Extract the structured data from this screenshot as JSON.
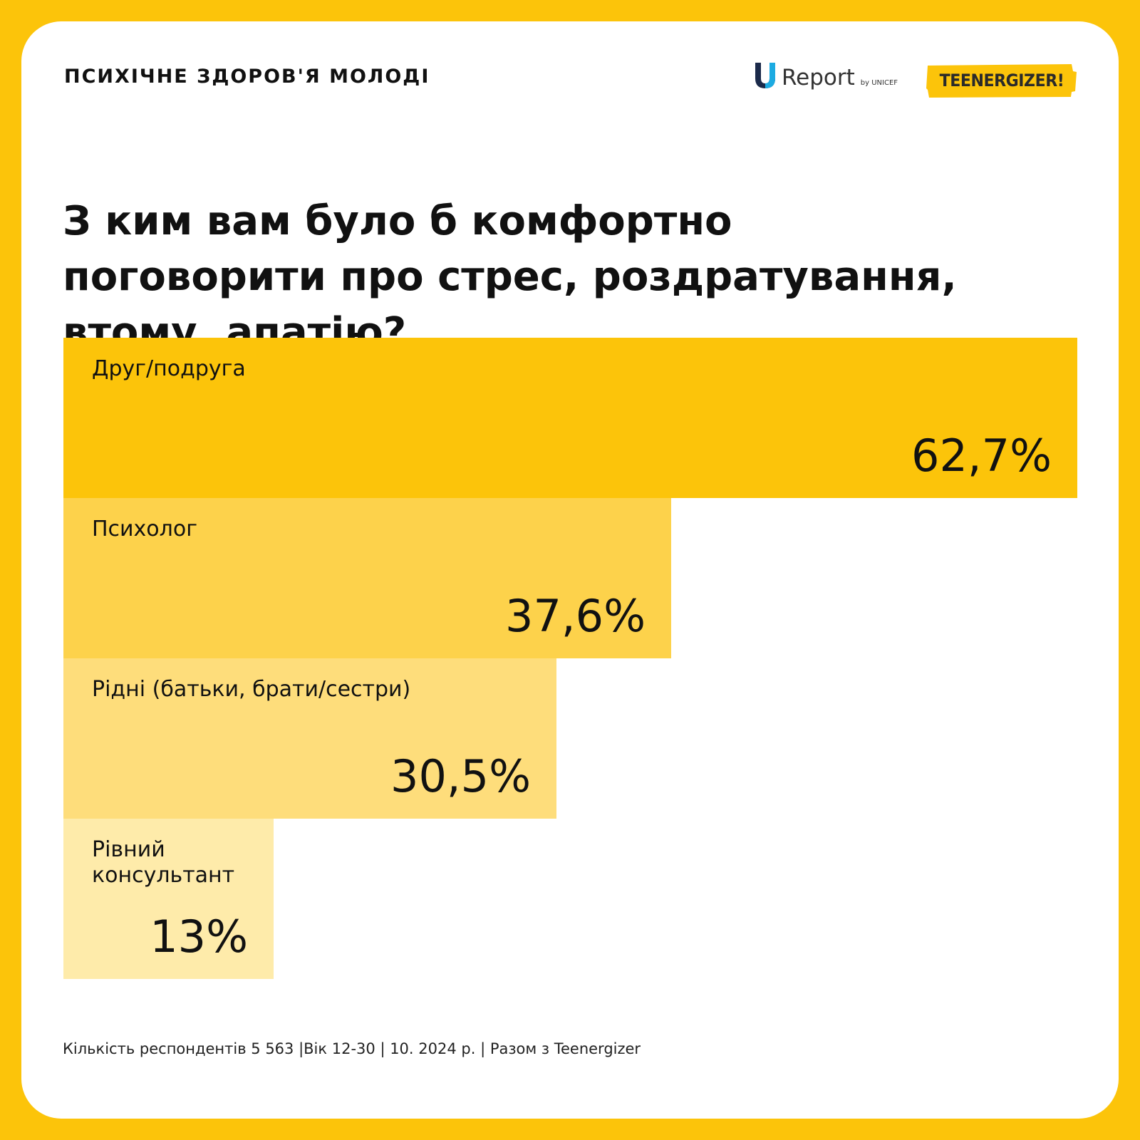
{
  "header": {
    "topic": "ПСИХІЧНЕ ЗДОРОВ'Я МОЛОДІ",
    "logo_ureport": {
      "word": "Report",
      "by": "by UNICEF",
      "mark": "u-letter-icon"
    },
    "logo_teenergizer": "TEENERGIZER!"
  },
  "question": "З ким вам було б комфортно поговорити про стрес, роздратування, втому, апатію?",
  "chart_data": {
    "type": "bar",
    "orientation": "horizontal",
    "title": "З ким вам було б комфортно поговорити про стрес, роздратування, втому, апатію?",
    "categories": [
      "Друг/подруга",
      "Психолог",
      "Рідні (батьки, брати/сестри)",
      "Рівний консультант"
    ],
    "values": [
      62.7,
      37.6,
      30.5,
      13
    ],
    "value_labels": [
      "62,7%",
      "37,6%",
      "30,5%",
      "13%"
    ],
    "unit": "%",
    "xlim": [
      0,
      62.7
    ],
    "colors": [
      "#FCC40A",
      "#FDD24B",
      "#FEDD7B",
      "#FEEBAA"
    ],
    "grid": false,
    "legend": "none"
  },
  "footer": "Кількість респондентів 5 563 |Вік 12-30 | 10. 2024 р. | Разом з Teenergizer",
  "colors": {
    "background": "#FCC40A",
    "card": "#FFFFFF",
    "text": "#111111"
  }
}
